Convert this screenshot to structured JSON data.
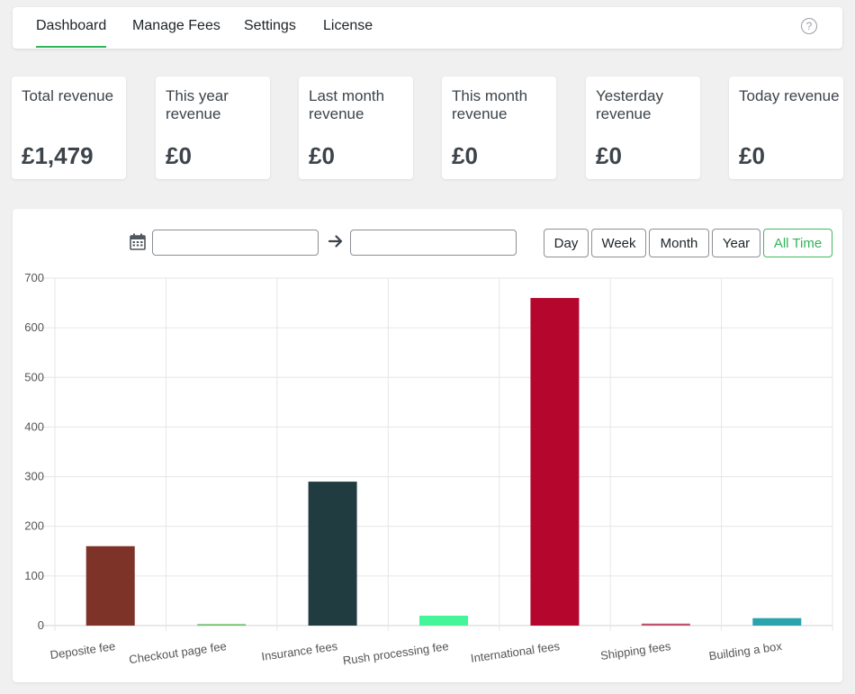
{
  "nav": {
    "tabs": [
      {
        "label": "Dashboard",
        "active": true
      },
      {
        "label": "Manage Fees",
        "active": false
      },
      {
        "label": "Settings",
        "active": false
      },
      {
        "label": "License",
        "active": false
      }
    ],
    "help_glyph": "?",
    "help_icon": "question-circle-icon"
  },
  "stats": [
    {
      "label": "Total revenue",
      "value": "£1,479"
    },
    {
      "label": "This year revenue",
      "value": "£0"
    },
    {
      "label": "Last month revenue",
      "value": "£0"
    },
    {
      "label": "This month revenue",
      "value": "£0"
    },
    {
      "label": "Yesterday revenue",
      "value": "£0"
    },
    {
      "label": "Today revenue",
      "value": "£0"
    }
  ],
  "filters": {
    "calendar_icon": "calendar-icon",
    "arrow_icon": "arrow-right-icon",
    "start_date_value": "",
    "end_date_value": "",
    "ranges": [
      {
        "label": "Day",
        "active": false
      },
      {
        "label": "Week",
        "active": false
      },
      {
        "label": "Month",
        "active": false
      },
      {
        "label": "Year",
        "active": false
      },
      {
        "label": "All Time",
        "active": true
      }
    ]
  },
  "colors": {
    "accent": "#2fb55a",
    "bar_colors": [
      "#7d3328",
      "#6cc06c",
      "#213c41",
      "#45f599",
      "#b5072e",
      "#c2536f",
      "#2ba3ad"
    ]
  },
  "chart_data": {
    "type": "bar",
    "categories": [
      "Deposite fee",
      "Checkout page fee",
      "Insurance fees",
      "Rush processing fee",
      "International fees",
      "Shipping fees",
      "Building a box"
    ],
    "values": [
      160,
      3,
      290,
      20,
      660,
      4,
      15
    ],
    "ylim": [
      0,
      700
    ],
    "yticks": [
      0,
      100,
      200,
      300,
      400,
      500,
      600,
      700
    ],
    "grid": true,
    "legend": "none"
  }
}
